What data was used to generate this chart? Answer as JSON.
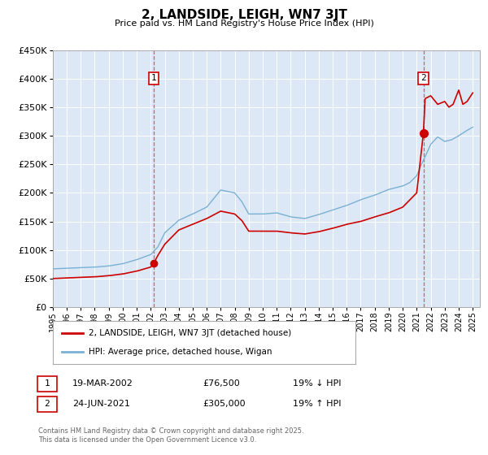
{
  "title": "2, LANDSIDE, LEIGH, WN7 3JT",
  "subtitle": "Price paid vs. HM Land Registry's House Price Index (HPI)",
  "ylim": [
    0,
    450000
  ],
  "yticks": [
    0,
    50000,
    100000,
    150000,
    200000,
    250000,
    300000,
    350000,
    400000,
    450000
  ],
  "xlim_start": 1995.0,
  "xlim_end": 2025.5,
  "xticks": [
    1995,
    1996,
    1997,
    1998,
    1999,
    2000,
    2001,
    2002,
    2003,
    2004,
    2005,
    2006,
    2007,
    2008,
    2009,
    2010,
    2011,
    2012,
    2013,
    2014,
    2015,
    2016,
    2017,
    2018,
    2019,
    2020,
    2021,
    2022,
    2023,
    2024,
    2025
  ],
  "property_color": "#cc0000",
  "hpi_color": "#7ab0d4",
  "sale1_date": 2002.21,
  "sale1_price": 76500,
  "sale2_date": 2021.48,
  "sale2_price": 305000,
  "legend_property": "2, LANDSIDE, LEIGH, WN7 3JT (detached house)",
  "legend_hpi": "HPI: Average price, detached house, Wigan",
  "table_row1": [
    "1",
    "19-MAR-2002",
    "£76,500",
    "19% ↓ HPI"
  ],
  "table_row2": [
    "2",
    "24-JUN-2021",
    "£305,000",
    "19% ↑ HPI"
  ],
  "footnote": "Contains HM Land Registry data © Crown copyright and database right 2025.\nThis data is licensed under the Open Government Licence v3.0.",
  "plot_bg_color": "#dce8f5",
  "grid_color": "#ffffff",
  "hpi_key_years": [
    1995,
    1996,
    1997,
    1998,
    1999,
    2000,
    2001,
    2002,
    2002.5,
    2003,
    2004,
    2005,
    2006,
    2007,
    2008,
    2008.5,
    2009,
    2010,
    2011,
    2012,
    2013,
    2014,
    2015,
    2016,
    2017,
    2018,
    2019,
    2020,
    2020.5,
    2021,
    2021.3,
    2021.5,
    2022,
    2022.5,
    2023,
    2023.5,
    2024,
    2024.5,
    2025
  ],
  "hpi_key_vals": [
    67000,
    68000,
    69000,
    70000,
    72000,
    76000,
    83000,
    92000,
    105000,
    130000,
    152000,
    163000,
    175000,
    205000,
    200000,
    185000,
    163000,
    163000,
    165000,
    158000,
    155000,
    162000,
    170000,
    178000,
    188000,
    196000,
    206000,
    212000,
    218000,
    230000,
    248000,
    258000,
    285000,
    298000,
    290000,
    293000,
    300000,
    308000,
    315000
  ],
  "prop_key_years": [
    1995,
    1996,
    1997,
    1998,
    1999,
    2000,
    2001,
    2002,
    2002.21,
    2002.5,
    2003,
    2004,
    2005,
    2006,
    2007,
    2008,
    2008.5,
    2009,
    2010,
    2011,
    2012,
    2013,
    2014,
    2015,
    2016,
    2017,
    2018,
    2019,
    2020,
    2021,
    2021.48,
    2021.6,
    2022,
    2022.5,
    2023,
    2023.3,
    2023.6,
    2024,
    2024.3,
    2024.6,
    2025
  ],
  "prop_key_vals": [
    50000,
    51000,
    52000,
    53000,
    55000,
    58000,
    63000,
    70000,
    76500,
    90000,
    110000,
    135000,
    145000,
    155000,
    168000,
    163000,
    152000,
    133000,
    133000,
    133000,
    130000,
    128000,
    132000,
    138000,
    145000,
    150000,
    158000,
    165000,
    175000,
    200000,
    305000,
    365000,
    370000,
    355000,
    360000,
    350000,
    355000,
    380000,
    355000,
    360000,
    375000
  ]
}
